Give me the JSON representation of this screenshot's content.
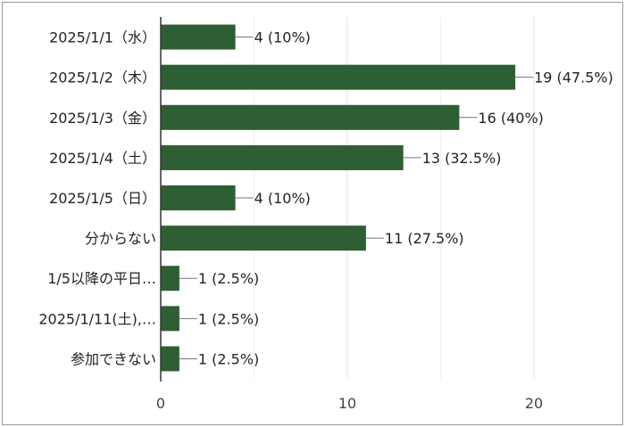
{
  "chart_data": {
    "type": "bar",
    "orientation": "horizontal",
    "categories": [
      "2025/1/1（水）",
      "2025/1/2（木）",
      "2025/1/3（金）",
      "2025/1/4（土）",
      "2025/1/5（日）",
      "分からない",
      "1/5以降の平日…",
      "2025/1/11(土),…",
      "参加できない"
    ],
    "values": [
      4,
      19,
      16,
      13,
      4,
      11,
      1,
      1,
      1
    ],
    "data_labels": [
      "4 (10%)",
      "19 (47.5%)",
      "16 (40%)",
      "13 (32.5%)",
      "4 (10%)",
      "11 (27.5%)",
      "1 (2.5%)",
      "1 (2.5%)",
      "1 (2.5%)"
    ],
    "xlim": [
      0,
      20
    ],
    "x_ticks": [
      "0",
      "10",
      "20"
    ],
    "grid": true,
    "legend": "none",
    "bar_color": "#2e5e33"
  }
}
